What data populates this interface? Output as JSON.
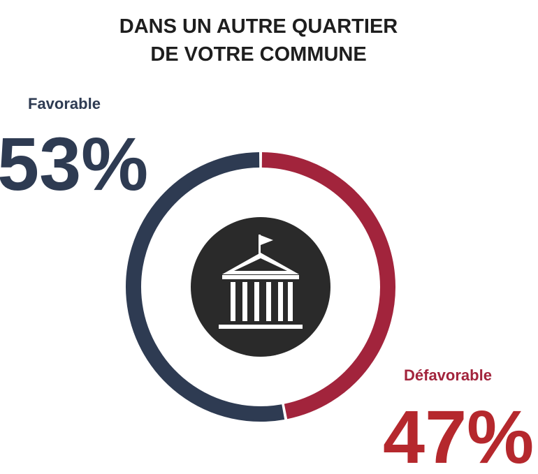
{
  "chart_data": {
    "type": "donut",
    "title": "DANS UN AUTRE QUARTIER DE VOTRE COMMUNE",
    "categories": [
      "Favorable",
      "Défavorable"
    ],
    "values": [
      53,
      47
    ],
    "value_labels": [
      "53%",
      "47%"
    ],
    "colors": [
      "#2e3b52",
      "#a2243c"
    ]
  }
}
